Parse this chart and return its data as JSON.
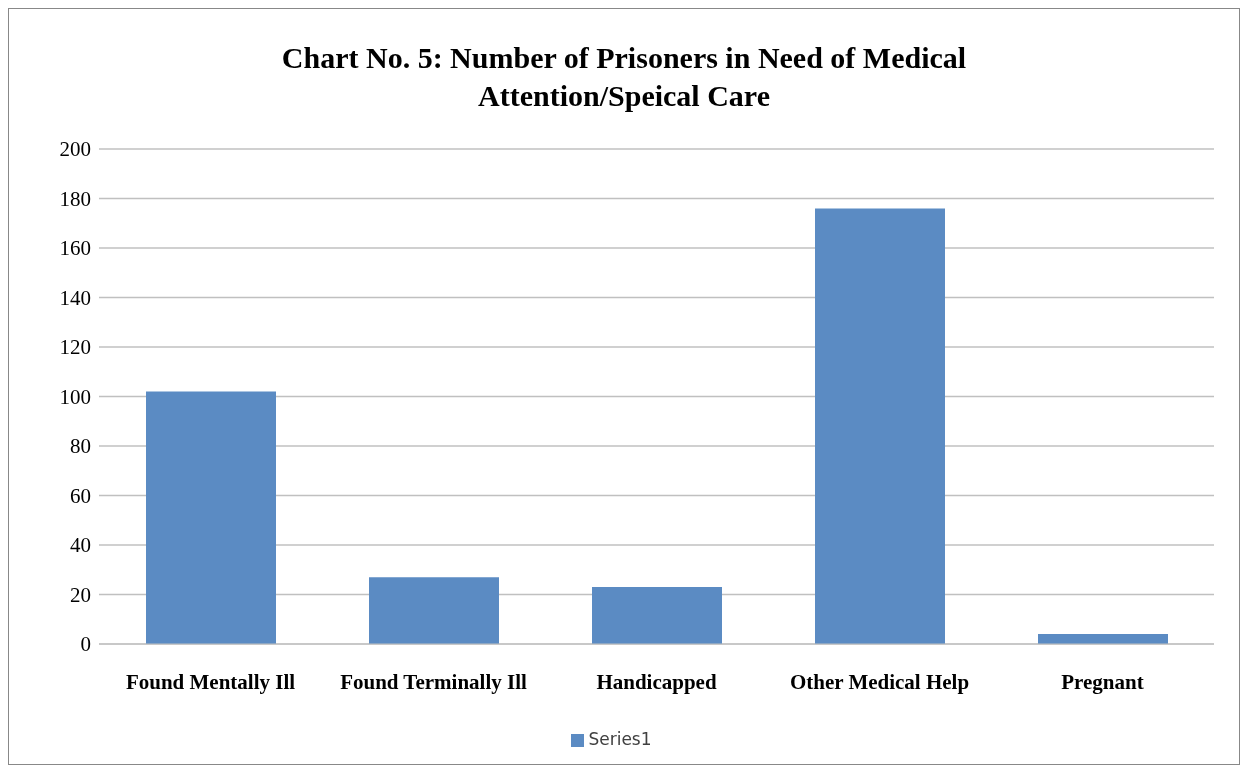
{
  "chart_data": {
    "type": "bar",
    "title": "Chart No. 5: Number of Prisoners in Need of Medical Attention/Speical Care",
    "categories": [
      "Found Mentally Ill",
      "Found Terminally Ill",
      "Handicapped",
      "Other Medical Help",
      "Pregnant"
    ],
    "series": [
      {
        "name": "Series1",
        "color": "#5b8bc3",
        "values": [
          102,
          27,
          23,
          176,
          4
        ]
      }
    ],
    "ylim": [
      0,
      200
    ],
    "yticks": [
      0,
      20,
      40,
      60,
      80,
      100,
      120,
      140,
      160,
      180,
      200
    ],
    "grid": "y",
    "legend": "bottom"
  }
}
